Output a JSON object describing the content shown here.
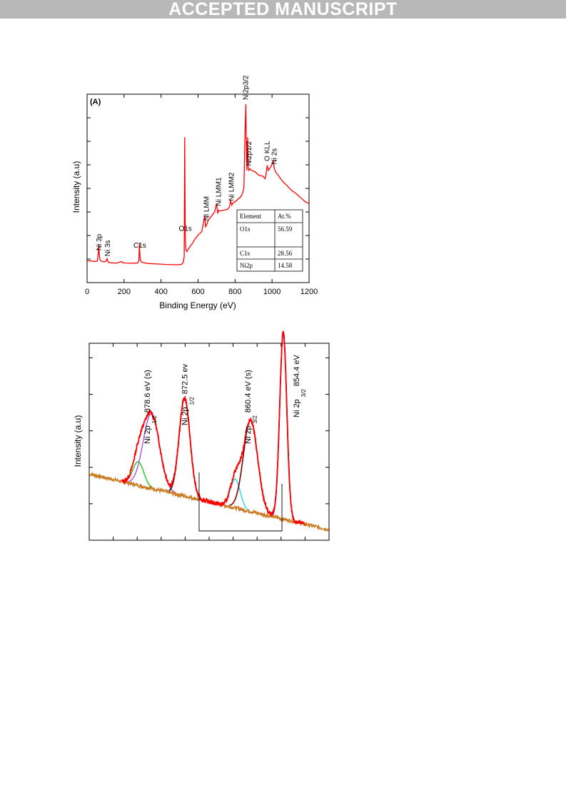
{
  "banner": "ACCEPTED MANUSCRIPT",
  "chart_data": [
    {
      "type": "line",
      "panel_label": "(A)",
      "xlabel": "Binding Energy (eV)",
      "ylabel": "Intensity (a.u)",
      "xlim": [
        0,
        1200
      ],
      "xticks": [
        "0",
        "200",
        "400",
        "600",
        "800",
        "1000",
        "1200"
      ],
      "series": [
        {
          "color": "#ff0000",
          "x": [
            0,
            20,
            40,
            55,
            60,
            63,
            66,
            70,
            80,
            95,
            105,
            108,
            111,
            115,
            130,
            160,
            185,
            190,
            195,
            210,
            240,
            270,
            275,
            280,
            283,
            285,
            288,
            295,
            330,
            380,
            430,
            480,
            510,
            520,
            525,
            528,
            531,
            534,
            540,
            550,
            560,
            570,
            580,
            600,
            620,
            630,
            636,
            640,
            646,
            655,
            670,
            690,
            700,
            706,
            712,
            720,
            740,
            760,
            770,
            776,
            782,
            790,
            800,
            815,
            830,
            840,
            848,
            852,
            855,
            858,
            861,
            864,
            868,
            870,
            872,
            875,
            880,
            890,
            910,
            930,
            950,
            962,
            968,
            974,
            980,
            990,
            1000,
            1006,
            1012,
            1020,
            1040,
            1060,
            1080,
            1100,
            1130,
            1160,
            1180,
            1200
          ],
          "y": [
            5.5,
            5.3,
            5.0,
            5.2,
            9.5,
            15.0,
            9.0,
            6.0,
            5.0,
            4.8,
            5.5,
            7.0,
            5.5,
            4.5,
            4.2,
            4.0,
            5.0,
            4.5,
            4.2,
            4.1,
            4.0,
            4.0,
            4.3,
            5.5,
            16.0,
            10.0,
            6.0,
            4.5,
            3.8,
            3.5,
            3.2,
            3.0,
            3.2,
            4.5,
            8.0,
            80.0,
            20.0,
            12.0,
            11.0,
            13.0,
            14.5,
            16.0,
            18.0,
            21.0,
            23.0,
            29.0,
            33.0,
            26.0,
            27.0,
            30.0,
            32.0,
            35.0,
            40.0,
            34.0,
            36.0,
            35.5,
            36.0,
            36.5,
            38.0,
            42.0,
            39.0,
            40.5,
            41.0,
            42.5,
            44.0,
            46.0,
            50.0,
            72.0,
            88.0,
            100.0,
            75.0,
            60.0,
            80.0,
            68.0,
            62.0,
            60.0,
            61.0,
            60.0,
            59.0,
            57.0,
            56.5,
            55.0,
            58.0,
            63.0,
            60.0,
            61.5,
            64.0,
            66.0,
            61.0,
            59.0,
            56.0,
            53.0,
            51.0,
            48.5,
            46.0,
            43.0,
            41.0,
            40.0
          ]
        }
      ],
      "peak_labels": [
        {
          "text": "Ni 3p",
          "x": 66
        },
        {
          "text": "Ni 3s",
          "x": 111
        },
        {
          "text": "C1s",
          "x": 285
        },
        {
          "text": "O1s",
          "x": 531
        },
        {
          "text": "Ni LMM",
          "x": 646
        },
        {
          "text": "Ni LMM1",
          "x": 712
        },
        {
          "text": "Ni LMM2",
          "x": 782
        },
        {
          "text": "Ni2p3/2",
          "x": 858
        },
        {
          "text": "Ni2p1/2",
          "x": 876
        },
        {
          "text": "O KLL",
          "x": 974
        },
        {
          "text": "Ni 2s",
          "x": 1012
        }
      ],
      "table": {
        "headers": [
          "Element",
          "At.%"
        ],
        "rows": [
          [
            "O1s",
            "56.59"
          ],
          [
            "C1s",
            "28.56"
          ],
          [
            "Ni2p",
            "14.58"
          ]
        ]
      }
    },
    {
      "type": "line",
      "ylabel": "Intensity (a.u)",
      "xlim": [
        890,
        846
      ],
      "baseline_color": "#cc7a1f",
      "data_color": "#ff0000",
      "baseline": {
        "x": [
          890,
          846
        ],
        "y": [
          0.35,
          0.02
        ]
      },
      "peak_labels": [
        {
          "text": "Ni 2p",
          "sub": "1/2",
          "rest": "878.6 eV (s)",
          "x": 878.6
        },
        {
          "text": "Ni 2p",
          "sub": "1/2",
          "rest": "872.5 ev",
          "x": 872.5
        },
        {
          "text": "Ni 2p",
          "sub": "3/2",
          "rest": "860.4 eV (s)",
          "x": 860.4
        },
        {
          "text": "Ni 2p",
          "sub": "3/2",
          "rest": "854.4 eV",
          "x": 854.4
        }
      ],
      "components": [
        {
          "color": "#33cc33",
          "center": 881.0,
          "height": 0.14,
          "width": 1.0
        },
        {
          "color": "#b865d9",
          "center": 878.6,
          "height": 0.44,
          "width": 1.5
        },
        {
          "color": "#000000",
          "center": 872.5,
          "height": 0.58,
          "width": 1.0
        },
        {
          "color": "#40d8e8",
          "center": 863.2,
          "height": 0.17,
          "width": 0.9
        },
        {
          "color": "#7a0000",
          "center": 860.4,
          "height": 0.54,
          "width": 1.3
        },
        {
          "color": "#0000cc",
          "center": 854.4,
          "height": 1.1,
          "width": 0.65
        }
      ]
    }
  ]
}
